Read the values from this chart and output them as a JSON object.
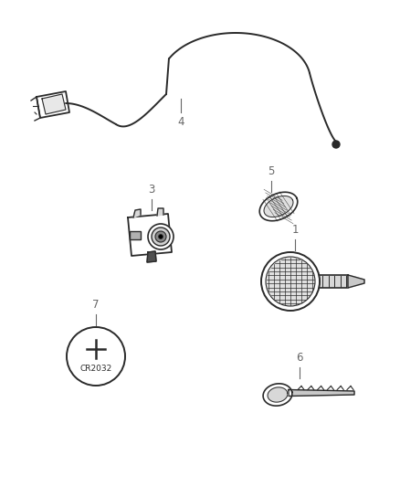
{
  "background_color": "#ffffff",
  "fig_width": 4.38,
  "fig_height": 5.33,
  "dpi": 100,
  "label_color": "#666666",
  "line_color": "#2a2a2a",
  "label_fontsize": 8.5,
  "components": {
    "item1_label": "1",
    "item3_label": "3",
    "item4_label": "4",
    "item5_label": "5",
    "item6_label": "6",
    "item7_label": "7"
  }
}
